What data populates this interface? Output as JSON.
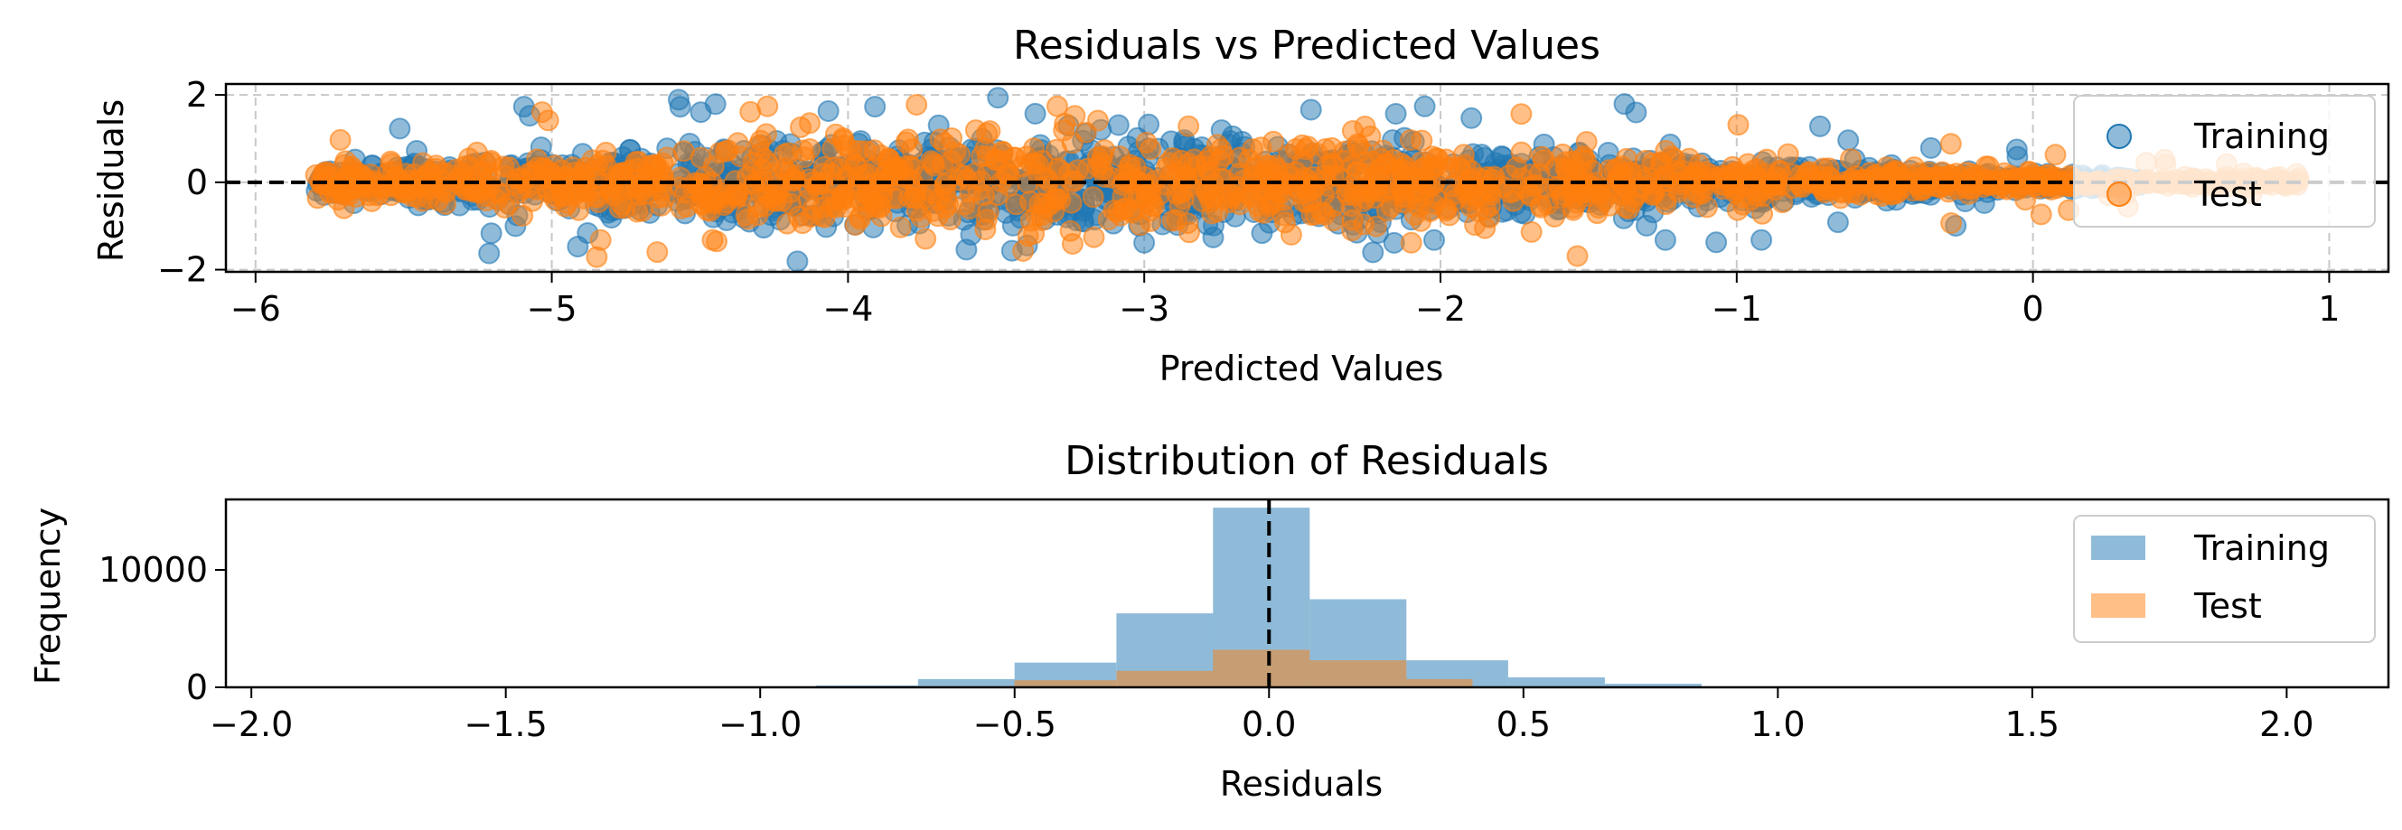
{
  "chart_data": [
    {
      "type": "scatter",
      "title": "Residuals vs Predicted Values",
      "xlabel": "Predicted Values",
      "ylabel": "Residuals",
      "xlim": [
        -6.1,
        1.2
      ],
      "ylim": [
        -2.05,
        2.25
      ],
      "xticks": [
        -6,
        -5,
        -4,
        -3,
        -2,
        -1,
        0,
        1
      ],
      "xtick_labels": [
        "−6",
        "−5",
        "−4",
        "−3",
        "−2",
        "−1",
        "0",
        "1"
      ],
      "yticks": [
        -2,
        0,
        2
      ],
      "ytick_labels": [
        "−2",
        "0",
        "2"
      ],
      "grid": true,
      "reference_line": 0,
      "legend_position": "right",
      "series": [
        {
          "name": "Training",
          "color": "#1f77b4",
          "x_range": [
            -5.8,
            0.9
          ],
          "residual_spread_max": 2.0
        },
        {
          "name": "Test",
          "color": "#ff7f0e",
          "x_range": [
            -5.8,
            0.9
          ],
          "residual_spread_max": 1.8
        }
      ]
    },
    {
      "type": "bar",
      "title": "Distribution of Residuals",
      "xlabel": "Residuals",
      "ylabel": "Frequency",
      "xlim": [
        -2.05,
        2.2
      ],
      "ylim": [
        0,
        16000
      ],
      "xticks": [
        -2.0,
        -1.5,
        -1.0,
        -0.5,
        0.0,
        0.5,
        1.0,
        1.5,
        2.0
      ],
      "xtick_labels": [
        "−2.0",
        "−1.5",
        "−1.0",
        "−0.5",
        "0.0",
        "0.5",
        "1.0",
        "1.5",
        "2.0"
      ],
      "yticks": [
        0,
        10000
      ],
      "ytick_labels": [
        "0",
        "10000"
      ],
      "reference_line": 0,
      "legend_position": "top-right",
      "series": [
        {
          "name": "Training",
          "color": "#1f77b4",
          "bin_edges": [
            -0.89,
            -0.69,
            -0.5,
            -0.3,
            -0.11,
            0.08,
            0.27,
            0.47,
            0.66,
            0.85
          ],
          "values": [
            150,
            700,
            2100,
            6300,
            15300,
            7500,
            2300,
            850,
            300
          ]
        },
        {
          "name": "Test",
          "color": "#ff7f0e",
          "bin_edges": [
            -0.69,
            -0.5,
            -0.3,
            -0.11,
            0.08,
            0.27,
            0.4
          ],
          "values": [
            100,
            600,
            1400,
            3200,
            2300,
            700
          ]
        }
      ]
    }
  ]
}
